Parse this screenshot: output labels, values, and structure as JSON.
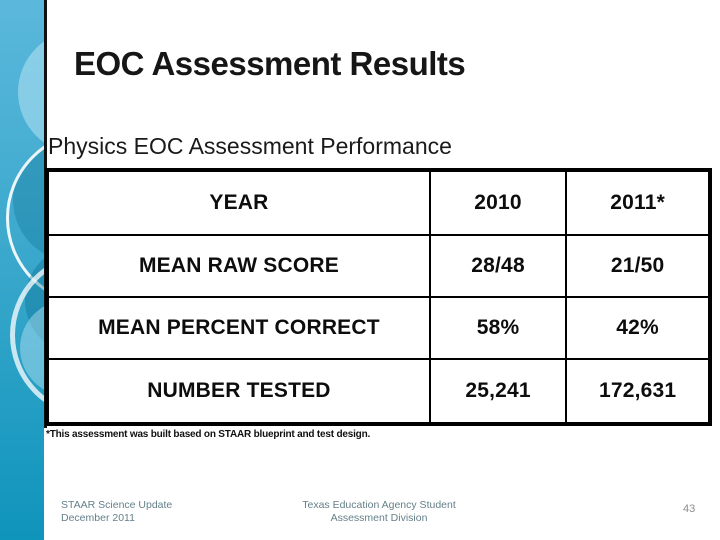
{
  "slide": {
    "title": "EOC Assessment Results",
    "subtitle": "Physics EOC Assessment Performance",
    "footnote": "*This assessment was built based on STAAR blueprint and test design.",
    "accent_color": "#1095bc",
    "sidebar_top_color": "#5bb8dc",
    "sidebar_bottom_color": "#0f94bc"
  },
  "chart_data": {
    "type": "table",
    "title": "Physics EOC Assessment Performance",
    "columns": [
      "YEAR",
      "2010",
      "2011*"
    ],
    "rows": [
      [
        "MEAN RAW SCORE",
        "28/48",
        "21/50"
      ],
      [
        "MEAN PERCENT CORRECT",
        "58%",
        "42%"
      ],
      [
        "NUMBER TESTED",
        "25,241",
        "172,631"
      ]
    ]
  },
  "table": {
    "rows": [
      {
        "label": "YEAR",
        "values": [
          "2010",
          "2011*"
        ]
      },
      {
        "label": "MEAN RAW SCORE",
        "values": [
          "28/48",
          "21/50"
        ]
      },
      {
        "label": "MEAN PERCENT CORRECT",
        "values": [
          "58%",
          "42%"
        ]
      },
      {
        "label": "NUMBER TESTED",
        "values": [
          "25,241",
          "172,631"
        ]
      }
    ]
  },
  "footer": {
    "left_line1": "STAAR Science Update",
    "left_line2": "December 2011",
    "center_line1": "Texas Education Agency Student",
    "center_line2": "Assessment Division",
    "page_number": "43"
  }
}
